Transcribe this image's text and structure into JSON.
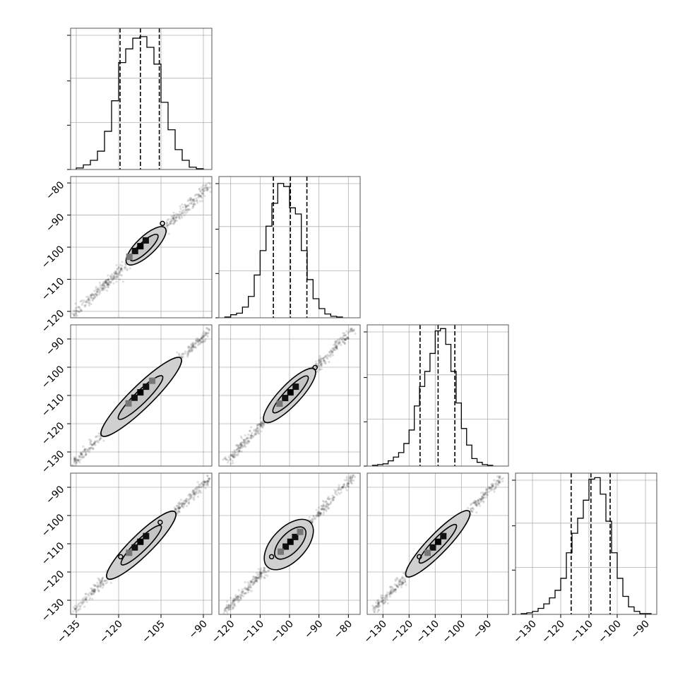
{
  "chart_data": {
    "type": "corner",
    "title": "",
    "parameters": [
      "",
      "",
      "",
      ""
    ],
    "marginals": [
      {
        "xlim": [
          -137,
          -87
        ],
        "x_ticks": [
          -135,
          -120,
          -105,
          -90
        ],
        "bin_edges": [
          -135,
          -132.5,
          -130,
          -127.5,
          -125,
          -122.5,
          -120,
          -117.5,
          -115,
          -112.5,
          -110,
          -107.5,
          -105,
          -102.5,
          -100,
          -97.5,
          -95,
          -92.5,
          -90
        ],
        "counts": [
          2,
          6,
          12,
          24,
          50,
          90,
          140,
          158,
          172,
          174,
          160,
          138,
          88,
          52,
          26,
          12,
          3,
          1
        ],
        "quantiles": [
          -119.5,
          -112.3,
          -105.6
        ],
        "y_max": 185
      },
      {
        "xlim": [
          -124,
          -76
        ],
        "x_ticks": [
          -120,
          -110,
          -100,
          -90,
          -80
        ],
        "bin_edges": [
          -122,
          -120,
          -118,
          -116,
          -114,
          -112,
          -110,
          -108,
          -106,
          -104,
          -102,
          -100,
          -98,
          -96,
          -94,
          -92,
          -90,
          -88,
          -86,
          -84,
          -82
        ],
        "counts": [
          1,
          4,
          6,
          14,
          28,
          56,
          88,
          120,
          150,
          176,
          172,
          144,
          136,
          88,
          50,
          25,
          12,
          5,
          2,
          1
        ],
        "quantiles": [
          -105.5,
          -99.7,
          -94.1
        ],
        "y_max": 185
      },
      {
        "xlim": [
          -136,
          -82
        ],
        "x_ticks": [
          -130,
          -120,
          -110,
          -100,
          -90
        ],
        "bin_edges": [
          -134,
          -132,
          -130,
          -128,
          -126,
          -124,
          -122,
          -120,
          -118,
          -116,
          -114,
          -112,
          -110,
          -108,
          -106,
          -104,
          -102,
          -100,
          -98,
          -96,
          -94,
          -92,
          -90,
          -88
        ],
        "counts": [
          1,
          2,
          3,
          7,
          12,
          18,
          30,
          48,
          80,
          106,
          126,
          150,
          180,
          183,
          162,
          126,
          84,
          50,
          28,
          10,
          5,
          2,
          1
        ],
        "quantiles": [
          -115.8,
          -108.9,
          -102.5
        ],
        "y_max": 188
      },
      {
        "xlim": [
          -136,
          -86
        ],
        "x_ticks": [
          -130,
          -120,
          -110,
          -100,
          -90
        ],
        "bin_edges": [
          -134,
          -132,
          -130,
          -128,
          -126,
          -124,
          -122,
          -120,
          -118,
          -116,
          -114,
          -112,
          -110,
          -108,
          -106,
          -104,
          -102,
          -100,
          -98,
          -96,
          -94,
          -92,
          -90,
          -88
        ],
        "counts": [
          1,
          2,
          4,
          8,
          14,
          22,
          32,
          48,
          82,
          108,
          128,
          152,
          180,
          182,
          160,
          124,
          82,
          48,
          24,
          10,
          4,
          1,
          1
        ],
        "quantiles": [
          -116.3,
          -109.3,
          -102.5
        ],
        "y_max": 188
      }
    ],
    "pairs": [
      {
        "row": 1,
        "col": 0,
        "xlim": [
          -137,
          -87
        ],
        "ylim": [
          -122,
          -78
        ],
        "y_ticks": [
          -120,
          -110,
          -100,
          -90,
          -80
        ],
        "x_range": [
          -136,
          -88
        ],
        "y_range": [
          -121,
          -81
        ],
        "slope": 0.82,
        "center": [
          -112.3,
          -99.7
        ],
        "contour_outer": [
          -117,
          -103.6
        ],
        "contour_inner": [
          -115.7,
          -106.2
        ],
        "contour_halfwidth": [
          1.5,
          0.85
        ],
        "squares": [
          [
            -114.2,
            -101.2
          ],
          [
            -112.3,
            -99.7
          ],
          [
            -110.4,
            -97.9
          ],
          [
            -116.2,
            -103.0
          ]
        ],
        "circles": [
          [
            -104.5,
            -92.6
          ]
        ]
      },
      {
        "row": 2,
        "col": 0,
        "xlim": [
          -137,
          -87
        ],
        "ylim": [
          -135,
          -85
        ],
        "y_ticks": [
          -130,
          -120,
          -110,
          -100,
          -90
        ],
        "x_range": [
          -136,
          -88
        ],
        "y_range": [
          -134,
          -87
        ],
        "slope": 0.96,
        "center": [
          -112.3,
          -108.9
        ],
        "contour_outer": [
          -126,
          -98
        ],
        "contour_inner": [
          -120,
          -104.5
        ],
        "contour_halfwidth": [
          1.8,
          1.0
        ],
        "squares": [
          [
            -114.4,
            -110.8
          ],
          [
            -112.3,
            -108.9
          ],
          [
            -110.3,
            -106.9
          ],
          [
            -116.5,
            -112.8
          ],
          [
            -108.1,
            -104.8
          ]
        ],
        "circles": []
      },
      {
        "row": 2,
        "col": 1,
        "xlim": [
          -124,
          -76
        ],
        "ylim": [
          -135,
          -85
        ],
        "y_ticks": [
          -130,
          -120,
          -110,
          -100,
          -90
        ],
        "x_range": [
          -122,
          -78
        ],
        "y_range": [
          -134,
          -86
        ],
        "slope": 1.08,
        "center": [
          -99.7,
          -108.9
        ],
        "contour_outer": [
          -108.5,
          -91.5
        ],
        "contour_inner": [
          -105.5,
          -93.8
        ],
        "contour_halfwidth": [
          1.6,
          0.9
        ],
        "squares": [
          [
            -101.5,
            -110.9
          ],
          [
            -99.7,
            -108.9
          ],
          [
            -97.9,
            -106.9
          ],
          [
            -103.4,
            -112.9
          ]
        ],
        "circles": [
          [
            -91.3,
            -100.1
          ]
        ]
      },
      {
        "row": 3,
        "col": 0,
        "xlim": [
          -137,
          -87
        ],
        "ylim": [
          -135,
          -85
        ],
        "y_ticks": [
          -130,
          -120,
          -110,
          -100,
          -90
        ],
        "x_range": [
          -136,
          -88
        ],
        "y_range": [
          -134,
          -87
        ],
        "slope": 0.98,
        "center": [
          -112.3,
          -109.3
        ],
        "contour_outer": [
          -124,
          -100
        ],
        "contour_inner": [
          -119,
          -105
        ],
        "contour_halfwidth": [
          1.7,
          0.95
        ],
        "squares": [
          [
            -114.3,
            -111.3
          ],
          [
            -112.3,
            -109.3
          ],
          [
            -110.3,
            -107.3
          ],
          [
            -116.3,
            -113.2
          ]
        ],
        "circles": [
          [
            -119.3,
            -114.6
          ],
          [
            -105.3,
            -102.4
          ]
        ]
      },
      {
        "row": 3,
        "col": 1,
        "xlim": [
          -124,
          -76
        ],
        "ylim": [
          -135,
          -85
        ],
        "y_ticks": [
          -130,
          -120,
          -110,
          -100,
          -90
        ],
        "x_range": [
          -122,
          -78
        ],
        "y_range": [
          -134,
          -86
        ],
        "slope": 1.06,
        "center": [
          -99.7,
          -109.3
        ],
        "contour_outer": [
          -107.5,
          -93
        ],
        "contour_inner": [
          -104.5,
          -95
        ],
        "contour_halfwidth": [
          2.6,
          1.5
        ],
        "squares": [
          [
            -101.3,
            -111.0
          ],
          [
            -99.7,
            -109.3
          ],
          [
            -98.1,
            -107.6
          ],
          [
            -103.0,
            -112.8
          ],
          [
            -96.4,
            -105.8
          ]
        ],
        "circles": [
          [
            -106.1,
            -114.6
          ]
        ]
      },
      {
        "row": 3,
        "col": 2,
        "xlim": [
          -136,
          -82
        ],
        "ylim": [
          -135,
          -85
        ],
        "y_ticks": [
          -130,
          -120,
          -110,
          -100,
          -90
        ],
        "x_range": [
          -134,
          -84
        ],
        "y_range": [
          -134,
          -86
        ],
        "slope": 0.98,
        "center": [
          -108.9,
          -109.3
        ],
        "contour_outer": [
          -121,
          -97
        ],
        "contour_inner": [
          -116,
          -102
        ],
        "contour_halfwidth": [
          1.7,
          0.95
        ],
        "squares": [
          [
            -110.9,
            -111.3
          ],
          [
            -108.9,
            -109.3
          ],
          [
            -106.9,
            -107.3
          ],
          [
            -112.9,
            -113.2
          ]
        ],
        "circles": [
          [
            -116.1,
            -114.6
          ]
        ]
      }
    ],
    "bottom_tick_labels": [
      [
        "−135",
        "−120",
        "−105",
        "−90"
      ],
      [
        "−120",
        "−110",
        "−100",
        "−90",
        "−80"
      ],
      [
        "−130",
        "−120",
        "−110",
        "−100",
        "−90"
      ],
      [
        "−130",
        "−120",
        "−110",
        "−100",
        "−90"
      ]
    ],
    "left_tick_labels": [
      [],
      [
        "−80",
        "−90",
        "−100",
        "−110",
        "−120"
      ],
      [
        "−90",
        "−100",
        "−110",
        "−120",
        "−130"
      ],
      [
        "−90",
        "−100",
        "−110",
        "−120",
        "−130"
      ]
    ],
    "colors": {
      "hist": "#000000",
      "points": "#000000",
      "contour_fill": "#d0d0d0",
      "grid": "#b0b0b0"
    },
    "grid": true,
    "legend": "none"
  }
}
